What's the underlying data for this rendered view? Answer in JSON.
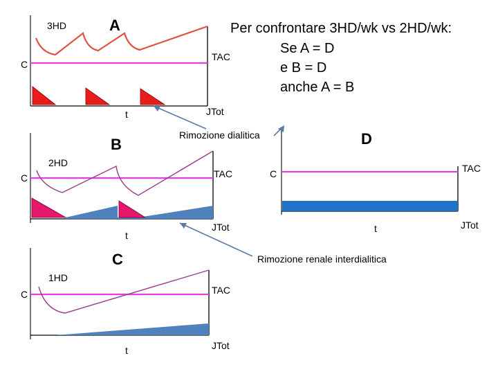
{
  "title_lines": [
    "Per confrontare 3HD/wk vs 2HD/wk:",
    "Se A = D",
    "e   B = D",
    "anche A = B"
  ],
  "panels": {
    "A": {
      "letter": "A",
      "regimen": "3HD",
      "c_label": "C",
      "tac_label": "TAC",
      "t_label": "t",
      "jtot_label": "JTot"
    },
    "B": {
      "letter": "B",
      "regimen": "2HD",
      "c_label": "C",
      "tac_label": "TAC",
      "t_label": "t",
      "jtot_label": "JTot"
    },
    "C": {
      "letter": "C",
      "regimen": "1HD",
      "c_label": "C",
      "tac_label": "TAC",
      "t_label": "t",
      "jtot_label": "JTot"
    },
    "D": {
      "letter": "D",
      "c_label": "C",
      "tac_label": "TAC",
      "t_label": "t",
      "jtot_label": "JTot"
    }
  },
  "annotations": {
    "dialytic": "Rimozione dialitica",
    "renal": "Rimozione renale interdialitica"
  },
  "colors": {
    "tac": "#e040e0",
    "concentration_3hd": "#e05040",
    "concentration_2hd_1hd": "#9a3b8a",
    "dialytic_removal_3hd": "#e81c1c",
    "dialytic_removal_2hd": "#e8176e",
    "renal_removal": "#4f81bd",
    "arrow": "#5a7aa8"
  }
}
